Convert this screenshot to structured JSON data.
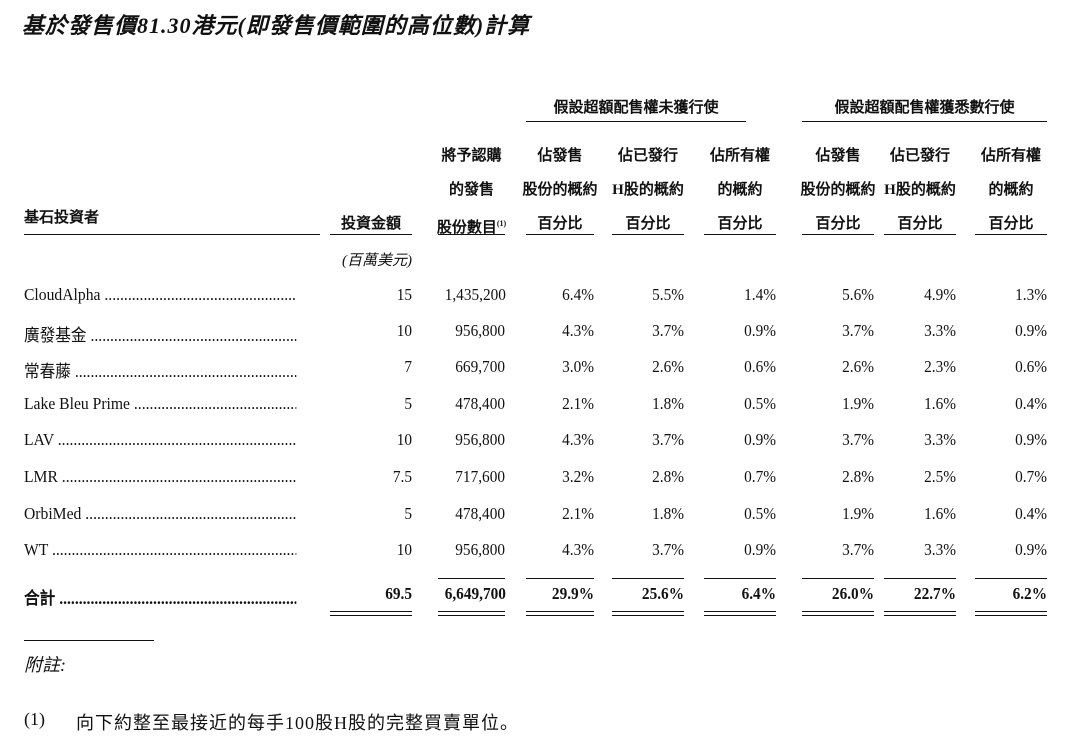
{
  "title": "基於發售價81.30港元(即發售價範圍的高位數)計算",
  "groups": [
    "假設超額配售權未獲行使",
    "假設超額配售權獲悉數行使"
  ],
  "investor_header": "基石投資者",
  "columns": [
    {
      "lines": [
        "投資金額"
      ]
    },
    {
      "lines": [
        "將予認購",
        "的發售",
        "股份數目"
      ],
      "note_ref": "(1)"
    },
    {
      "lines": [
        "佔發售",
        "股份的概約",
        "百分比"
      ]
    },
    {
      "lines": [
        "佔已發行",
        "H股的概約",
        "百分比"
      ]
    },
    {
      "lines": [
        "佔所有權",
        "的概約",
        "百分比"
      ]
    },
    {
      "lines": [
        "佔發售",
        "股份的概約",
        "百分比"
      ]
    },
    {
      "lines": [
        "佔已發行",
        "H股的概約",
        "百分比"
      ]
    },
    {
      "lines": [
        "佔所有權",
        "的概約",
        "百分比"
      ]
    }
  ],
  "unit_label": "(百萬美元)",
  "rows": [
    {
      "name": "CloudAlpha",
      "values": [
        "15",
        "1,435,200",
        "6.4%",
        "5.5%",
        "1.4%",
        "5.6%",
        "4.9%",
        "1.3%"
      ]
    },
    {
      "name": "廣發基金",
      "values": [
        "10",
        "956,800",
        "4.3%",
        "3.7%",
        "0.9%",
        "3.7%",
        "3.3%",
        "0.9%"
      ]
    },
    {
      "name": "常春藤",
      "values": [
        "7",
        "669,700",
        "3.0%",
        "2.6%",
        "0.6%",
        "2.6%",
        "2.3%",
        "0.6%"
      ]
    },
    {
      "name": "Lake Bleu Prime",
      "values": [
        "5",
        "478,400",
        "2.1%",
        "1.8%",
        "0.5%",
        "1.9%",
        "1.6%",
        "0.4%"
      ]
    },
    {
      "name": "LAV",
      "values": [
        "10",
        "956,800",
        "4.3%",
        "3.7%",
        "0.9%",
        "3.7%",
        "3.3%",
        "0.9%"
      ]
    },
    {
      "name": "LMR",
      "values": [
        "7.5",
        "717,600",
        "3.2%",
        "2.8%",
        "0.7%",
        "2.8%",
        "2.5%",
        "0.7%"
      ]
    },
    {
      "name": "OrbiMed",
      "values": [
        "5",
        "478,400",
        "2.1%",
        "1.8%",
        "0.5%",
        "1.9%",
        "1.6%",
        "0.4%"
      ]
    },
    {
      "name": "WT",
      "values": [
        "10",
        "956,800",
        "4.3%",
        "3.7%",
        "0.9%",
        "3.7%",
        "3.3%",
        "0.9%"
      ]
    }
  ],
  "total": {
    "name": "合計",
    "values": [
      "69.5",
      "6,649,700",
      "29.9%",
      "25.6%",
      "6.4%",
      "26.0%",
      "22.7%",
      "6.2%"
    ]
  },
  "notes_heading": "附註:",
  "notes": [
    {
      "num": "(1)",
      "text": "向下約整至最接近的每手100股H股的完整買賣單位。"
    }
  ]
}
